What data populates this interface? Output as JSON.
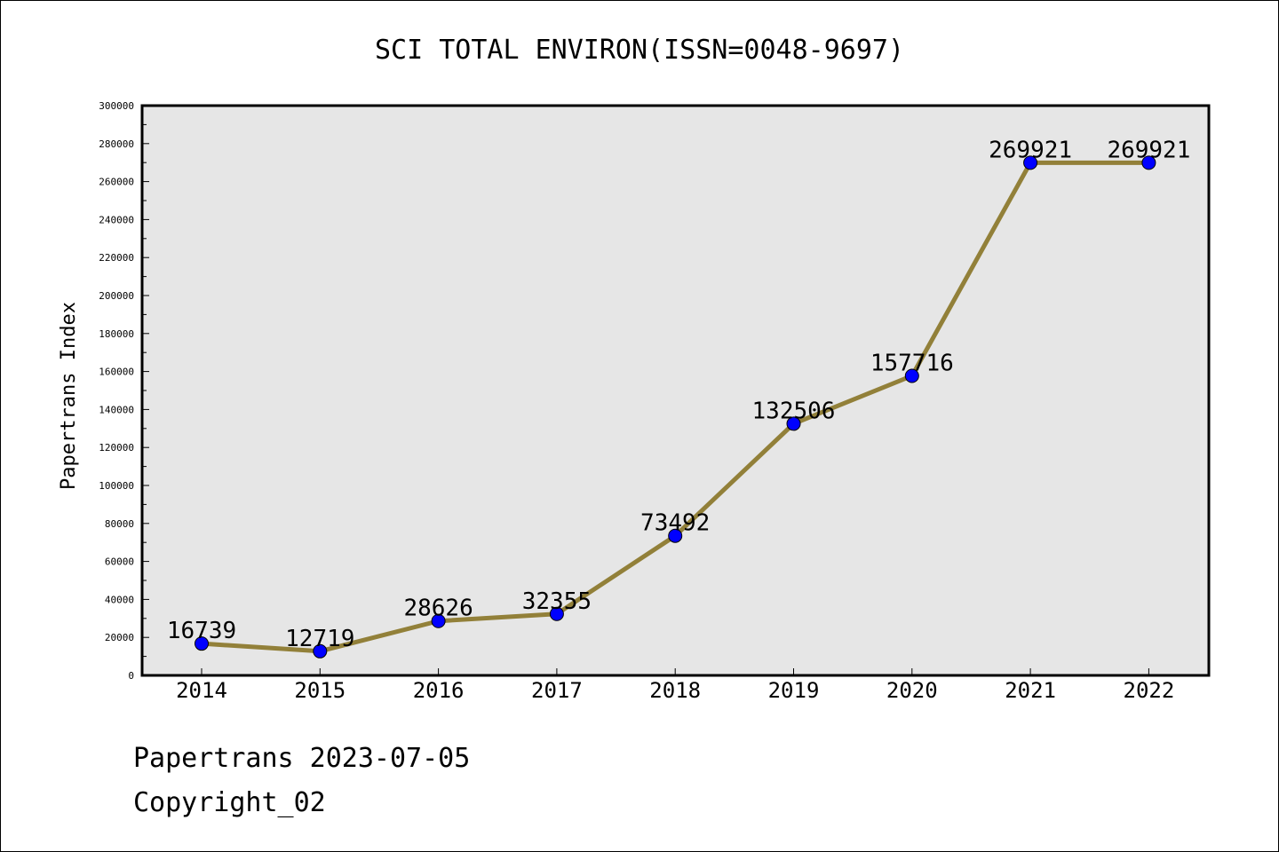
{
  "chart_data": {
    "type": "line",
    "title": "SCI TOTAL ENVIRON(ISSN=0048-9697)",
    "xlabel": "",
    "ylabel": "Papertrans Index",
    "categories": [
      "2014",
      "2015",
      "2016",
      "2017",
      "2018",
      "2019",
      "2020",
      "2021",
      "2022"
    ],
    "values": [
      16739,
      12719,
      28626,
      32355,
      73492,
      132506,
      157716,
      269921,
      269921
    ],
    "data_labels": [
      "16739",
      "12719",
      "28626",
      "32355",
      "73492",
      "132506",
      "157716",
      "269921",
      "269921"
    ],
    "ylim": [
      0,
      300000
    ],
    "y_ticks": [
      "0",
      "20000",
      "40000",
      "60000",
      "80000",
      "100000",
      "120000",
      "140000",
      "160000",
      "180000",
      "200000",
      "220000",
      "240000",
      "260000",
      "280000",
      "300000"
    ],
    "grid": false,
    "legend": "none",
    "colors": {
      "line": "#928039",
      "marker": "#0000ff",
      "plot_bg": "#e6e6e6"
    }
  },
  "footer": {
    "line1": "Papertrans 2023-07-05",
    "line2": "Copyright_02"
  }
}
